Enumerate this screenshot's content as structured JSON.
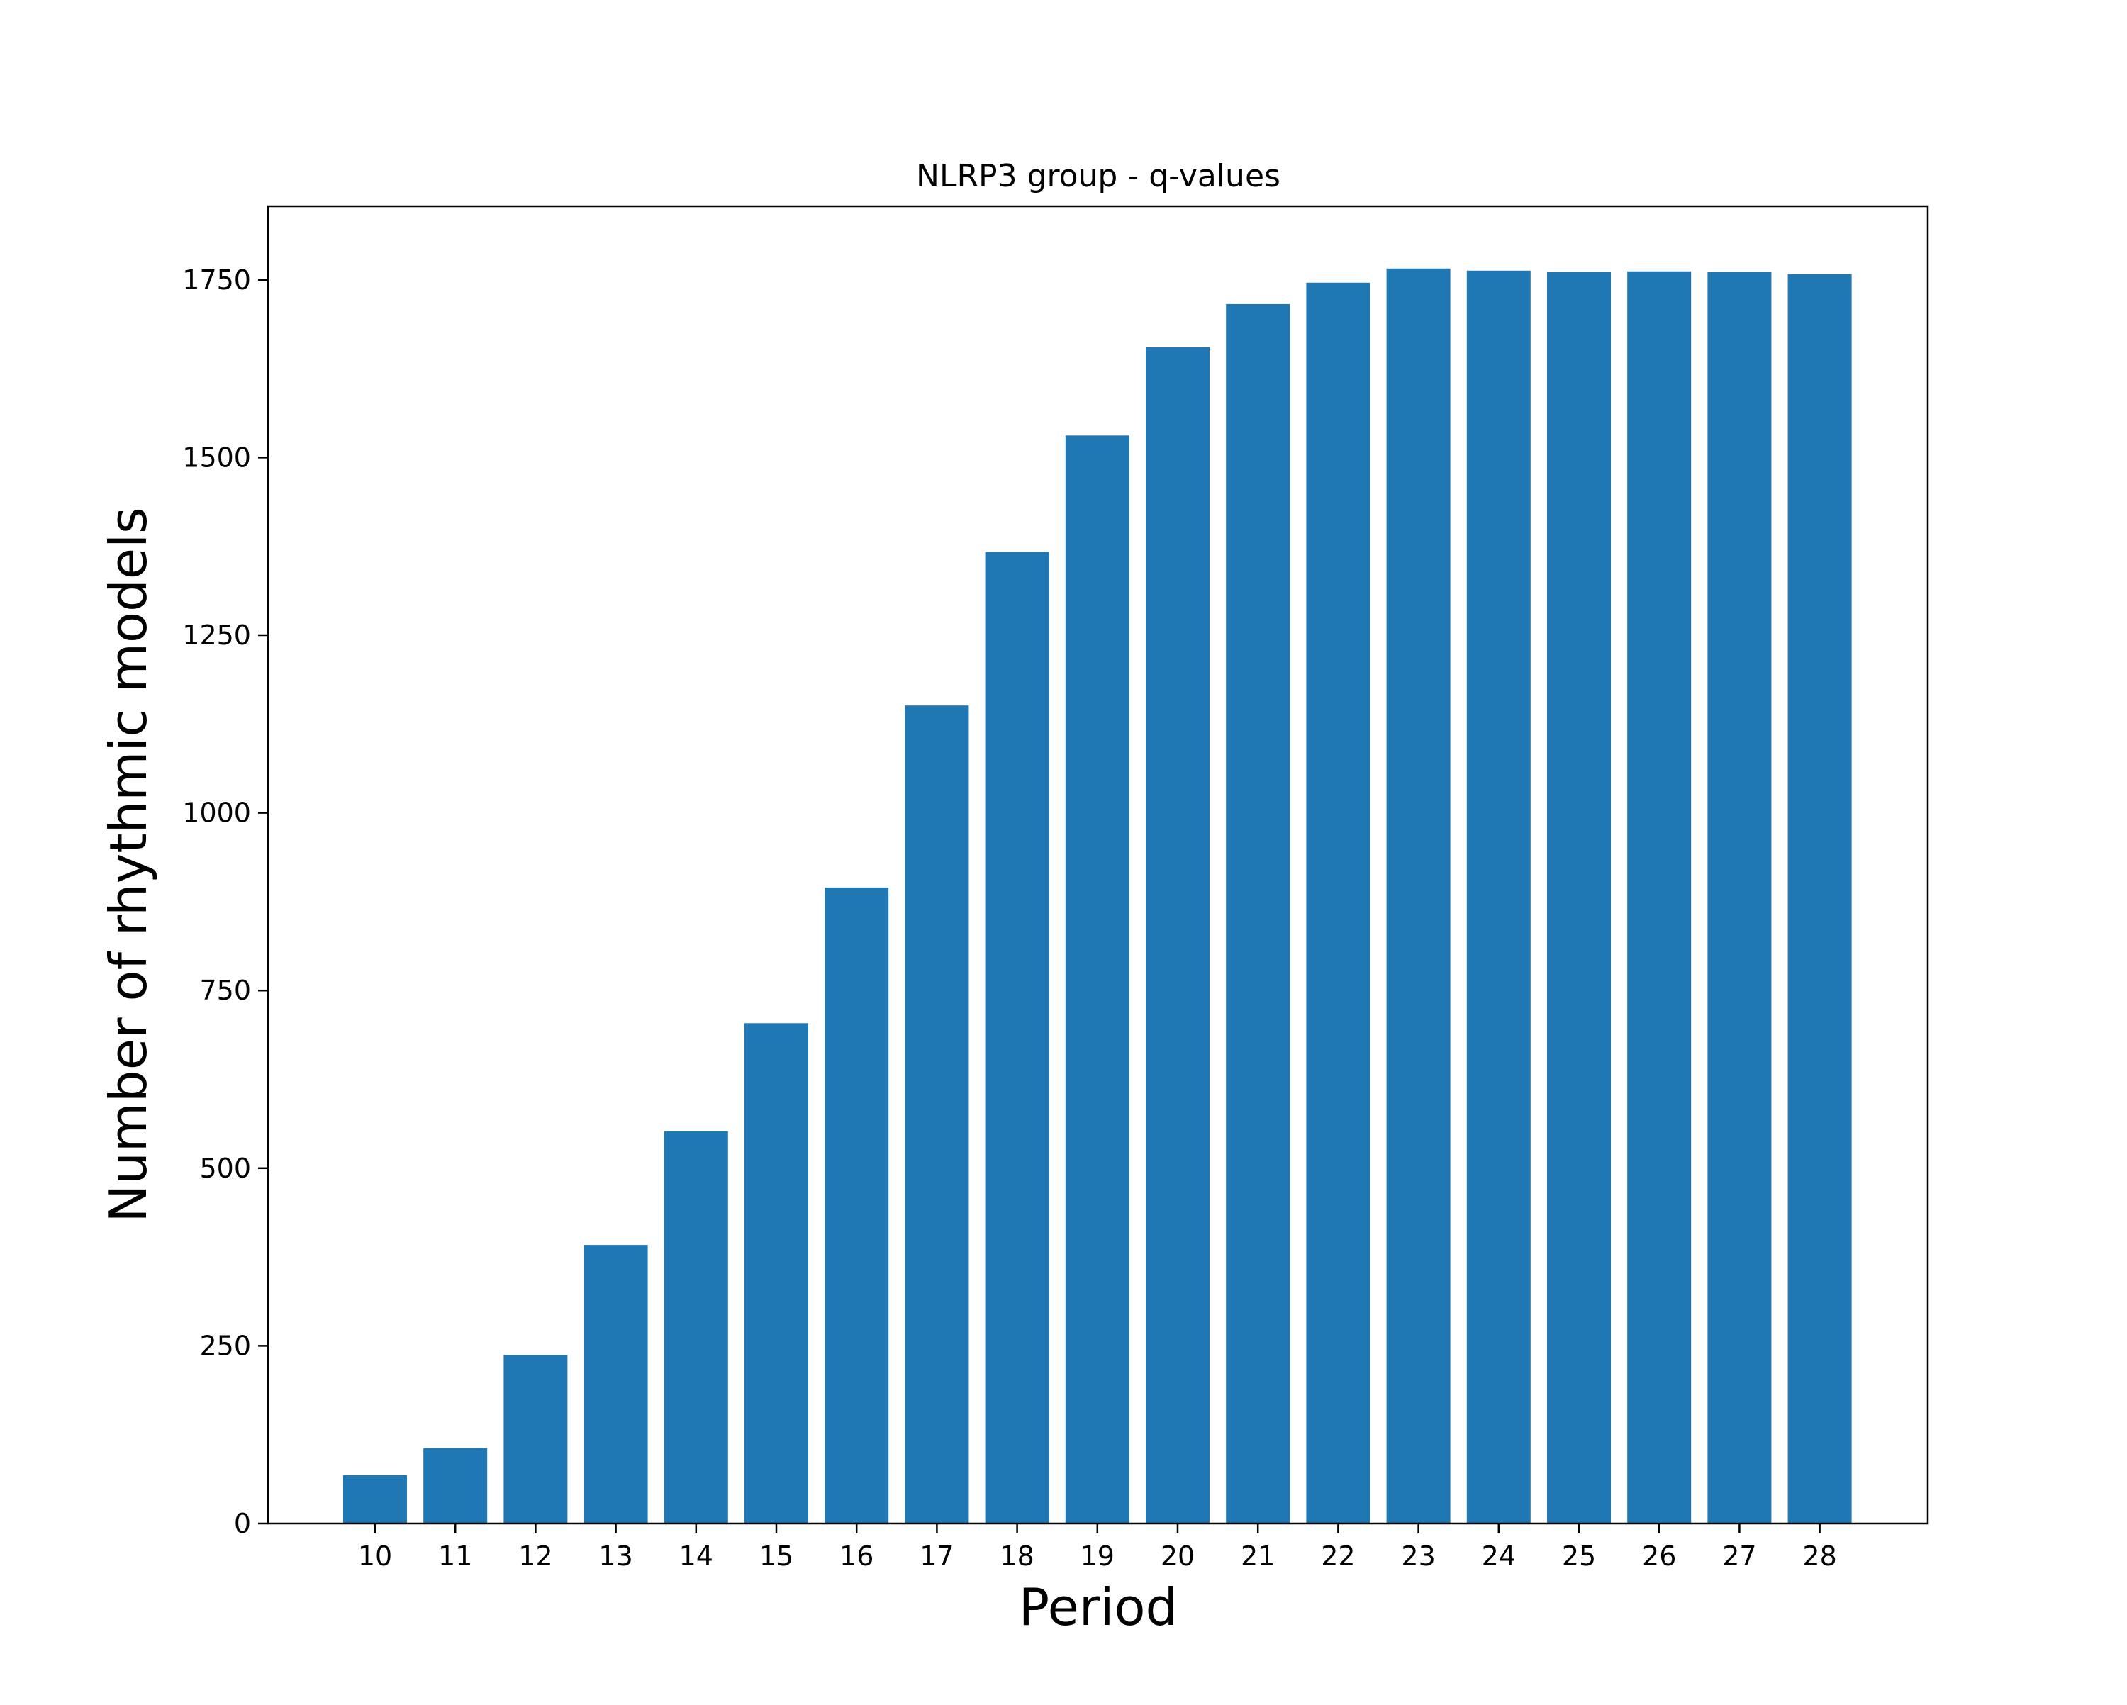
{
  "chart_data": {
    "type": "bar",
    "title": "NLRP3 group - q-values",
    "xlabel": "Period",
    "ylabel": "Number of rhythmic models",
    "categories": [
      "10",
      "11",
      "12",
      "13",
      "14",
      "15",
      "16",
      "17",
      "18",
      "19",
      "20",
      "21",
      "22",
      "23",
      "24",
      "25",
      "26",
      "27",
      "28"
    ],
    "values": [
      68,
      106,
      237,
      392,
      552,
      704,
      895,
      1151,
      1367,
      1531,
      1655,
      1716,
      1746,
      1766,
      1763,
      1761,
      1762,
      1761,
      1758
    ],
    "ylim": [
      0,
      1850
    ],
    "yticks": [
      "0",
      "250",
      "500",
      "750",
      "1000",
      "1250",
      "1500",
      "1750"
    ],
    "grid": false,
    "bar_color": "#1f77b4"
  }
}
